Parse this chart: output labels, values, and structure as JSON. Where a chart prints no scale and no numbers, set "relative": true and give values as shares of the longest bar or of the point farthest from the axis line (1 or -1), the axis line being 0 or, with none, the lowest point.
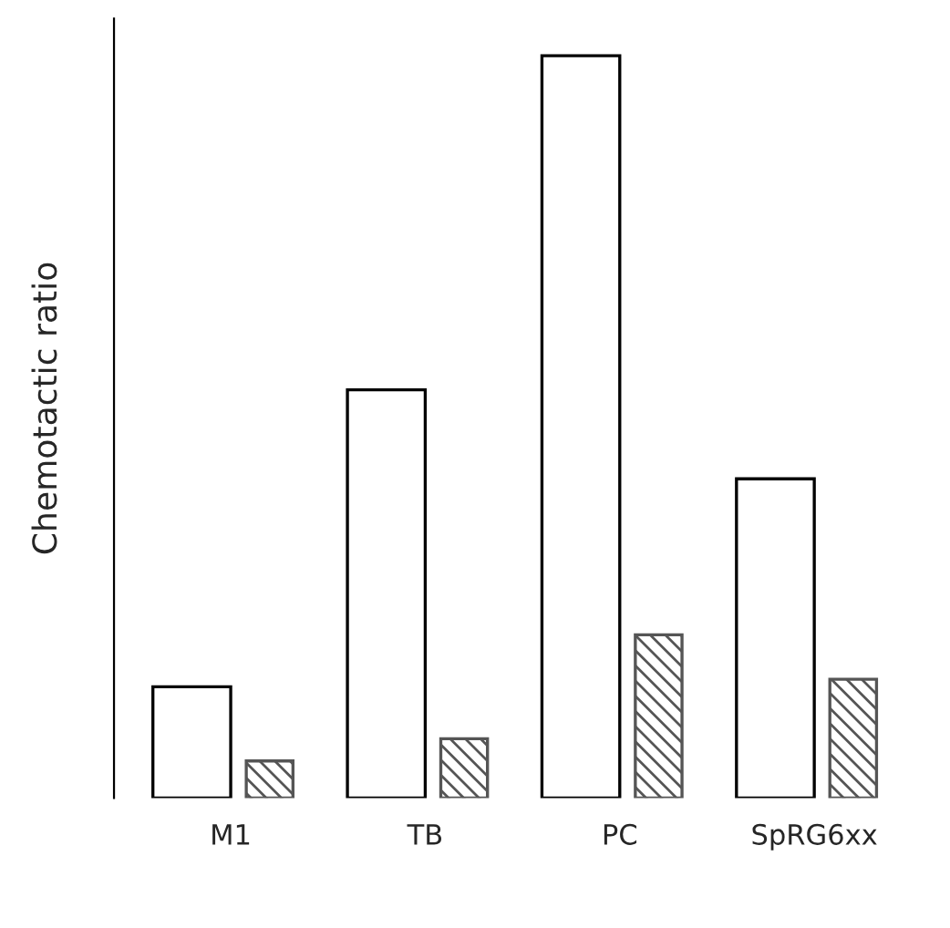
{
  "chart_data": {
    "type": "bar",
    "relative": true,
    "ylabel": "Chemotactic ratio",
    "categories": [
      "M1",
      "TB",
      "PC",
      "SpRG6xx"
    ],
    "series": [
      {
        "color": "#ffffff",
        "values": [
          0.15,
          0.55,
          1.0,
          0.43
        ]
      },
      {
        "color": "#555555",
        "values": [
          0.05,
          0.08,
          0.22,
          0.16
        ]
      }
    ]
  }
}
